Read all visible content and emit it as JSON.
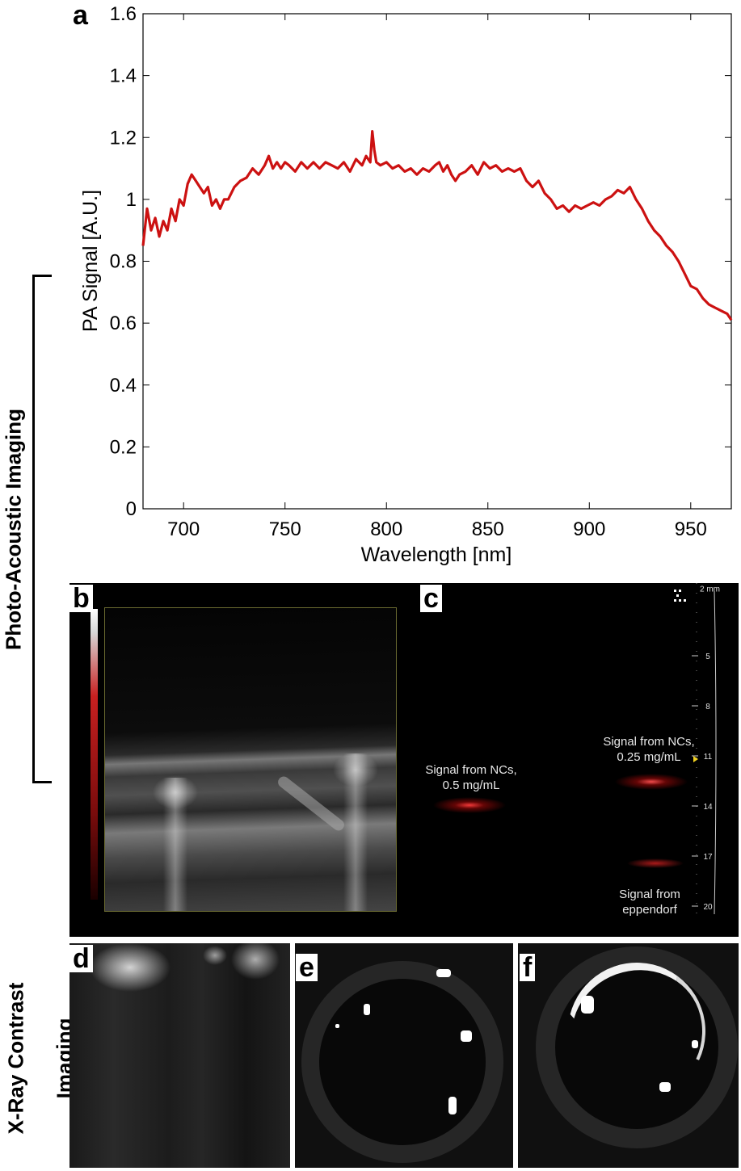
{
  "side_labels": {
    "photoacoustic": "Photo-Acoustic Imaging",
    "xray_line1": "X-Ray Contrast",
    "xray_line2": "Imaging"
  },
  "panels": {
    "a": "a",
    "b": "b",
    "c": "c",
    "d": "d",
    "e": "e",
    "f": "f"
  },
  "panel_c": {
    "signal_05_line1": "Signal from NCs,",
    "signal_05_line2": "0.5 mg/mL",
    "signal_025_line1": "Signal from NCs,",
    "signal_025_line2": "0.25 mg/mL",
    "eppendorf_line1": "Signal from",
    "eppendorf_line2": "eppendorf",
    "depth_unit_label": "2 mm",
    "depth_ticks": [
      "5",
      "8",
      "11",
      "14",
      "17",
      "20"
    ],
    "colors": {
      "pa_signal": "#d01818",
      "marker": "#f0d020"
    }
  },
  "chart_data": {
    "type": "line",
    "xlabel": "Wavelength [nm]",
    "ylabel": "PA Signal [A.U.]",
    "xlim": [
      680,
      970
    ],
    "ylim": [
      0,
      1.6
    ],
    "xticks": [
      700,
      750,
      800,
      850,
      900,
      950
    ],
    "yticks": [
      0,
      0.2,
      0.4,
      0.6,
      0.8,
      1,
      1.2,
      1.4,
      1.6
    ],
    "ytick_labels": [
      "0",
      "0.2",
      "0.4",
      "0.6",
      "0.8",
      "1",
      "1.2",
      "1.4",
      "1.6"
    ],
    "color": "#cc1111",
    "series": [
      {
        "x": [
          680,
          682,
          684,
          686,
          688,
          690,
          692,
          694,
          696,
          698,
          700,
          702,
          704,
          706,
          708,
          710,
          712,
          714,
          716,
          718,
          720,
          722,
          725,
          728,
          731,
          734,
          737,
          740,
          742,
          744,
          746,
          748,
          750,
          752,
          755,
          758,
          761,
          764,
          767,
          770,
          773,
          776,
          779,
          782,
          785,
          788,
          790,
          792,
          793,
          794,
          795,
          797,
          800,
          803,
          806,
          809,
          812,
          815,
          818,
          821,
          824,
          826,
          828,
          830,
          832,
          834,
          836,
          839,
          842,
          845,
          848,
          851,
          854,
          857,
          860,
          863,
          866,
          869,
          872,
          875,
          878,
          881,
          884,
          887,
          890,
          893,
          896,
          899,
          902,
          905,
          908,
          911,
          914,
          917,
          920,
          923,
          926,
          929,
          932,
          935,
          938,
          941,
          944,
          947,
          950,
          953,
          956,
          959,
          962,
          965,
          968,
          970
        ],
        "y": [
          0.85,
          0.97,
          0.9,
          0.94,
          0.88,
          0.93,
          0.9,
          0.97,
          0.93,
          1.0,
          0.98,
          1.05,
          1.08,
          1.06,
          1.04,
          1.02,
          1.04,
          0.98,
          1.0,
          0.97,
          1.0,
          1.0,
          1.04,
          1.06,
          1.07,
          1.1,
          1.08,
          1.11,
          1.14,
          1.1,
          1.12,
          1.1,
          1.12,
          1.11,
          1.09,
          1.12,
          1.1,
          1.12,
          1.1,
          1.12,
          1.11,
          1.1,
          1.12,
          1.09,
          1.13,
          1.11,
          1.14,
          1.12,
          1.22,
          1.16,
          1.12,
          1.11,
          1.12,
          1.1,
          1.11,
          1.09,
          1.1,
          1.08,
          1.1,
          1.09,
          1.11,
          1.12,
          1.09,
          1.11,
          1.08,
          1.06,
          1.08,
          1.09,
          1.11,
          1.08,
          1.12,
          1.1,
          1.11,
          1.09,
          1.1,
          1.09,
          1.1,
          1.06,
          1.04,
          1.06,
          1.02,
          1.0,
          0.97,
          0.98,
          0.96,
          0.98,
          0.97,
          0.98,
          0.99,
          0.98,
          1.0,
          1.01,
          1.03,
          1.02,
          1.04,
          1.0,
          0.97,
          0.93,
          0.9,
          0.88,
          0.85,
          0.83,
          0.8,
          0.76,
          0.72,
          0.71,
          0.68,
          0.66,
          0.65,
          0.64,
          0.63,
          0.61
        ]
      }
    ]
  }
}
